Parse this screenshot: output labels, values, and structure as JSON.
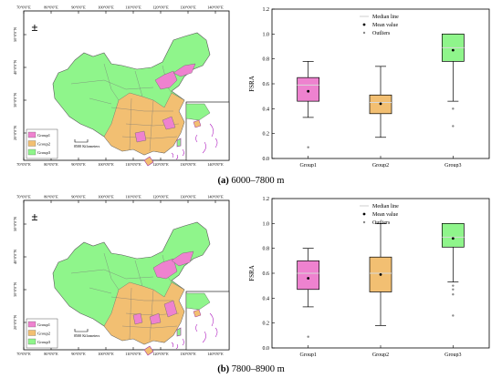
{
  "colors": {
    "group1": "#ee82cf",
    "group2": "#f2bf72",
    "group3": "#8ff58b",
    "border": "#888888"
  },
  "panels": [
    {
      "id": "a",
      "caption_label": "(a)",
      "caption_text": " 6000–7800 m",
      "map": {
        "top_ticks": [
          "70°0'0\"E",
          "80°0'0\"E",
          "90°0'0\"E",
          "100°0'0\"E",
          "110°0'0\"E",
          "120°0'0\"E",
          "130°0'0\"E",
          "140°0'0\"E"
        ],
        "bottom_ticks": [
          "70°0'0\"E",
          "80°0'0\"E",
          "90°0'0\"E",
          "100°0'0\"E",
          "110°0'0\"E",
          "120°0'0\"E",
          "130°0'0\"E",
          "140°0'0\"E"
        ],
        "left_ticks": [
          "50°0'0\"N",
          "40°0'0\"N",
          "30°0'0\"N",
          "20°0'0\"N"
        ],
        "north_symbol": "±",
        "scale_zero": "0",
        "scale_label": "500 Kilometers",
        "legend": [
          "Group1",
          "Group2",
          "Group3"
        ]
      },
      "chart_data": {
        "type": "box",
        "categories": [
          "Group1",
          "Group2",
          "Group3"
        ],
        "ylabel": "FSRA",
        "ylim": [
          0,
          1.2
        ],
        "yticks": [
          "0.0",
          "0.2",
          "0.4",
          "0.6",
          "0.8",
          "1.0",
          "1.2"
        ],
        "legend": [
          "Median line",
          "Mean value",
          "Outliers"
        ],
        "boxes": [
          {
            "name": "Group1",
            "whisker_low": 0.33,
            "q1": 0.46,
            "median": 0.59,
            "q3": 0.65,
            "whisker_high": 0.78,
            "mean": 0.54,
            "outliers": [
              0.09
            ]
          },
          {
            "name": "Group2",
            "whisker_low": 0.17,
            "q1": 0.36,
            "median": 0.45,
            "q3": 0.51,
            "whisker_high": 0.74,
            "mean": 0.44,
            "outliers": []
          },
          {
            "name": "Group3",
            "whisker_low": 0.46,
            "q1": 0.78,
            "median": 0.89,
            "q3": 1.0,
            "whisker_high": 1.0,
            "mean": 0.87,
            "outliers": [
              0.4,
              0.26
            ]
          }
        ]
      }
    },
    {
      "id": "b",
      "caption_label": "(b)",
      "caption_text": " 7800–8900 m",
      "map": {
        "top_ticks": [
          "70°0'0\"E",
          "80°0'0\"E",
          "90°0'0\"E",
          "100°0'0\"E",
          "110°0'0\"E",
          "120°0'0\"E",
          "130°0'0\"E",
          "140°0'0\"E"
        ],
        "bottom_ticks": [
          "70°0'0\"E",
          "80°0'0\"E",
          "90°0'0\"E",
          "100°0'0\"E",
          "110°0'0\"E",
          "120°0'0\"E",
          "130°0'0\"E",
          "140°0'0\"E"
        ],
        "left_ticks": [
          "50°0'0\"N",
          "40°0'0\"N",
          "30°0'0\"N",
          "20°0'0\"N"
        ],
        "north_symbol": "±",
        "scale_zero": "0",
        "scale_label": "500 Kilometers",
        "legend": [
          "Group1",
          "Group2",
          "Group3"
        ]
      },
      "chart_data": {
        "type": "box",
        "categories": [
          "Group1",
          "Group2",
          "Group3"
        ],
        "ylabel": "FSRA",
        "ylim": [
          0,
          1.2
        ],
        "yticks": [
          "0.0",
          "0.2",
          "0.4",
          "0.6",
          "0.8",
          "1.0",
          "1.2"
        ],
        "legend": [
          "Median line",
          "Mean value",
          "Outliers"
        ],
        "boxes": [
          {
            "name": "Group1",
            "whisker_low": 0.33,
            "q1": 0.47,
            "median": 0.6,
            "q3": 0.7,
            "whisker_high": 0.8,
            "mean": 0.56,
            "outliers": [
              0.09
            ]
          },
          {
            "name": "Group2",
            "whisker_low": 0.18,
            "q1": 0.45,
            "median": 0.6,
            "q3": 0.73,
            "whisker_high": 1.0,
            "mean": 0.59,
            "outliers": []
          },
          {
            "name": "Group3",
            "whisker_low": 0.53,
            "q1": 0.81,
            "median": 0.89,
            "q3": 1.0,
            "whisker_high": 1.0,
            "mean": 0.88,
            "outliers": [
              0.5,
              0.47,
              0.43,
              0.26
            ]
          }
        ]
      }
    }
  ]
}
